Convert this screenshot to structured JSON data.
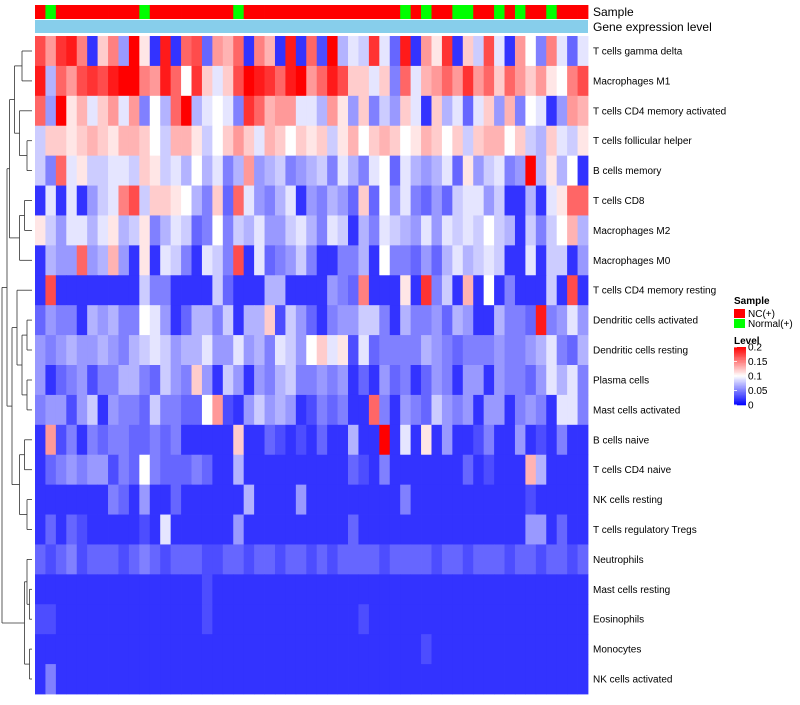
{
  "chart_data": {
    "type": "heatmap",
    "title": "",
    "annotation_labels": [
      "Sample",
      "Gene expression level"
    ],
    "rows": [
      "T cells gamma delta",
      "Macrophages M1",
      "T cells CD4 memory activated",
      "T cells follicular helper",
      "B cells memory",
      "T cells CD8",
      "Macrophages M2",
      "Macrophages M0",
      "T cells CD4 memory resting",
      "Dendritic cells activated",
      "Dendritic cells resting",
      "Plasma cells",
      "Mast cells activated",
      "B cells naive",
      "T cells CD4 naive",
      "NK cells resting",
      "T cells regulatory  Tregs",
      "Neutrophils",
      "Mast cells resting",
      "Eosinophils",
      "Monocytes",
      "NK cells activated"
    ],
    "sample_groups": [
      "NC",
      "Normal",
      "NC",
      "NC",
      "NC",
      "NC",
      "NC",
      "NC",
      "NC",
      "NC",
      "Normal",
      "NC",
      "NC",
      "NC",
      "NC",
      "NC",
      "NC",
      "NC",
      "NC",
      "Normal",
      "NC",
      "NC",
      "NC",
      "NC",
      "NC",
      "NC",
      "NC",
      "NC",
      "NC",
      "NC",
      "NC",
      "NC",
      "NC",
      "NC",
      "NC",
      "Normal",
      "NC",
      "Normal",
      "NC",
      "NC",
      "Normal",
      "Normal",
      "NC",
      "NC",
      "Normal",
      "NC",
      "Normal",
      "NC",
      "NC",
      "Normal",
      "NC",
      "NC",
      "NC"
    ],
    "values": [
      [
        0.17,
        0.14,
        0.18,
        0.19,
        0.15,
        0.02,
        0.12,
        0.15,
        0.06,
        0.2,
        0.11,
        0.02,
        0.19,
        0.02,
        0.16,
        0.17,
        0.04,
        0.14,
        0.13,
        0.16,
        0.02,
        0.15,
        0.13,
        0.02,
        0.19,
        0.02,
        0.16,
        0.03,
        0.2,
        0.07,
        0.09,
        0.08,
        0.18,
        0.09,
        0.04,
        0.19,
        0.02,
        0.14,
        0.11,
        0.18,
        0.02,
        0.12,
        0.08,
        0.17,
        0.09,
        0.02,
        0.14,
        0.1,
        0.05,
        0.15,
        0.09,
        0.04,
        0.09
      ],
      [
        0.19,
        0.07,
        0.16,
        0.14,
        0.17,
        0.18,
        0.17,
        0.19,
        0.2,
        0.2,
        0.15,
        0.14,
        0.19,
        0.16,
        0.1,
        0.18,
        0.12,
        0.09,
        0.12,
        0.17,
        0.2,
        0.19,
        0.18,
        0.16,
        0.19,
        0.2,
        0.14,
        0.16,
        0.19,
        0.17,
        0.12,
        0.12,
        0.09,
        0.12,
        0.05,
        0.16,
        0.09,
        0.13,
        0.14,
        0.16,
        0.14,
        0.18,
        0.14,
        0.16,
        0.12,
        0.16,
        0.14,
        0.12,
        0.14,
        0.11,
        0.1,
        0.15,
        0.17
      ],
      [
        0.16,
        0.06,
        0.2,
        0.11,
        0.13,
        0.09,
        0.12,
        0.14,
        0.09,
        0.14,
        0.05,
        0.1,
        0.07,
        0.16,
        0.2,
        0.07,
        0.09,
        0.1,
        0.09,
        0.05,
        0.18,
        0.16,
        0.13,
        0.14,
        0.14,
        0.09,
        0.09,
        0.07,
        0.14,
        0.11,
        0.06,
        0.12,
        0.05,
        0.08,
        0.06,
        0.12,
        0.09,
        0.02,
        0.12,
        0.07,
        0.09,
        0.04,
        0.09,
        0.12,
        0.06,
        0.13,
        0.05,
        0.1,
        0.09,
        0.02,
        0.06,
        0.14,
        0.13
      ],
      [
        0.08,
        0.12,
        0.12,
        0.11,
        0.12,
        0.13,
        0.12,
        0.11,
        0.13,
        0.13,
        0.12,
        0.1,
        0.08,
        0.13,
        0.13,
        0.11,
        0.08,
        0.1,
        0.12,
        0.14,
        0.12,
        0.09,
        0.13,
        0.12,
        0.1,
        0.12,
        0.11,
        0.12,
        0.08,
        0.11,
        0.13,
        0.1,
        0.12,
        0.13,
        0.12,
        0.1,
        0.11,
        0.13,
        0.12,
        0.1,
        0.12,
        0.08,
        0.12,
        0.13,
        0.13,
        0.1,
        0.12,
        0.08,
        0.07,
        0.12,
        0.09,
        0.08,
        0.11
      ],
      [
        0.08,
        0.05,
        0.16,
        0.09,
        0.11,
        0.08,
        0.08,
        0.09,
        0.09,
        0.08,
        0.12,
        0.11,
        0.08,
        0.09,
        0.07,
        0.1,
        0.07,
        0.09,
        0.05,
        0.07,
        0.14,
        0.06,
        0.07,
        0.08,
        0.05,
        0.06,
        0.07,
        0.08,
        0.05,
        0.09,
        0.07,
        0.05,
        0.09,
        0.1,
        0.04,
        0.09,
        0.07,
        0.06,
        0.07,
        0.09,
        0.04,
        0.11,
        0.06,
        0.08,
        0.09,
        0.05,
        0.06,
        0.2,
        0.07,
        0.11,
        0.07,
        0.1,
        0.02
      ],
      [
        0.02,
        0.09,
        0.02,
        0.09,
        0.02,
        0.06,
        0.08,
        0.09,
        0.15,
        0.17,
        0.08,
        0.12,
        0.12,
        0.11,
        0.1,
        0.07,
        0.05,
        0.12,
        0.04,
        0.16,
        0.09,
        0.06,
        0.05,
        0.07,
        0.09,
        0.02,
        0.06,
        0.05,
        0.07,
        0.06,
        0.04,
        0.12,
        0.04,
        0.1,
        0.06,
        0.09,
        0.05,
        0.04,
        0.06,
        0.04,
        0.08,
        0.09,
        0.09,
        0.06,
        0.08,
        0.02,
        0.02,
        0.07,
        0.02,
        0.09,
        0.11,
        0.16,
        0.16
      ],
      [
        0.11,
        0.08,
        0.06,
        0.09,
        0.09,
        0.07,
        0.09,
        0.11,
        0.07,
        0.08,
        0.11,
        0.05,
        0.07,
        0.09,
        0.08,
        0.04,
        0.05,
        0.1,
        0.05,
        0.08,
        0.07,
        0.09,
        0.06,
        0.06,
        0.08,
        0.09,
        0.07,
        0.05,
        0.09,
        0.08,
        0.02,
        0.07,
        0.05,
        0.09,
        0.08,
        0.07,
        0.06,
        0.09,
        0.06,
        0.09,
        0.08,
        0.09,
        0.08,
        0.1,
        0.08,
        0.07,
        0.02,
        0.08,
        0.05,
        0.08,
        0.1,
        0.13,
        0.07
      ],
      [
        0.02,
        0.07,
        0.06,
        0.06,
        0.16,
        0.06,
        0.07,
        0.13,
        0.06,
        0.02,
        0.11,
        0.02,
        0.09,
        0.08,
        0.05,
        0.02,
        0.09,
        0.08,
        0.05,
        0.17,
        0.02,
        0.09,
        0.04,
        0.05,
        0.06,
        0.08,
        0.05,
        0.02,
        0.02,
        0.05,
        0.05,
        0.07,
        0.02,
        0.1,
        0.05,
        0.05,
        0.04,
        0.06,
        0.04,
        0.07,
        0.09,
        0.07,
        0.08,
        0.09,
        0.08,
        0.02,
        0.02,
        0.09,
        0.02,
        0.08,
        0.08,
        0.02,
        0.06
      ],
      [
        0.02,
        0.17,
        0.02,
        0.02,
        0.02,
        0.02,
        0.02,
        0.02,
        0.02,
        0.02,
        0.08,
        0.05,
        0.05,
        0.02,
        0.02,
        0.02,
        0.02,
        0.08,
        0.04,
        0.02,
        0.02,
        0.02,
        0.07,
        0.07,
        0.02,
        0.02,
        0.02,
        0.02,
        0.06,
        0.05,
        0.04,
        0.15,
        0.02,
        0.02,
        0.02,
        0.11,
        0.02,
        0.18,
        0.05,
        0.08,
        0.02,
        0.13,
        0.02,
        0.1,
        0.02,
        0.05,
        0.02,
        0.02,
        0.02,
        0.08,
        0.02,
        0.17,
        0.02
      ],
      [
        0.04,
        0.06,
        0.05,
        0.05,
        0.02,
        0.07,
        0.06,
        0.07,
        0.05,
        0.05,
        0.1,
        0.09,
        0.06,
        0.02,
        0.04,
        0.07,
        0.07,
        0.05,
        0.08,
        0.02,
        0.07,
        0.07,
        0.12,
        0.03,
        0.08,
        0.06,
        0.04,
        0.02,
        0.05,
        0.06,
        0.06,
        0.08,
        0.08,
        0.05,
        0.02,
        0.07,
        0.05,
        0.05,
        0.06,
        0.04,
        0.07,
        0.06,
        0.02,
        0.02,
        0.07,
        0.05,
        0.05,
        0.04,
        0.19,
        0.05,
        0.06,
        0.09,
        0.06
      ],
      [
        0.06,
        0.05,
        0.06,
        0.07,
        0.06,
        0.06,
        0.07,
        0.06,
        0.05,
        0.07,
        0.08,
        0.09,
        0.08,
        0.06,
        0.07,
        0.07,
        0.09,
        0.06,
        0.06,
        0.09,
        0.06,
        0.07,
        0.05,
        0.09,
        0.08,
        0.06,
        0.1,
        0.12,
        0.09,
        0.11,
        0.03,
        0.09,
        0.04,
        0.05,
        0.05,
        0.05,
        0.05,
        0.07,
        0.06,
        0.05,
        0.04,
        0.05,
        0.05,
        0.05,
        0.06,
        0.05,
        0.05,
        0.06,
        0.07,
        0.09,
        0.05,
        0.04,
        0.07
      ],
      [
        0.06,
        0.02,
        0.04,
        0.05,
        0.06,
        0.03,
        0.05,
        0.05,
        0.07,
        0.07,
        0.05,
        0.04,
        0.08,
        0.06,
        0.05,
        0.12,
        0.06,
        0.02,
        0.08,
        0.06,
        0.02,
        0.06,
        0.05,
        0.07,
        0.08,
        0.05,
        0.05,
        0.06,
        0.05,
        0.06,
        0.02,
        0.04,
        0.02,
        0.06,
        0.04,
        0.05,
        0.02,
        0.04,
        0.06,
        0.05,
        0.02,
        0.06,
        0.06,
        0.02,
        0.06,
        0.05,
        0.05,
        0.04,
        0.06,
        0.09,
        0.07,
        0.09,
        0.05
      ],
      [
        0.05,
        0.06,
        0.06,
        0.03,
        0.06,
        0.08,
        0.02,
        0.06,
        0.05,
        0.05,
        0.04,
        0.08,
        0.05,
        0.05,
        0.04,
        0.04,
        0.1,
        0.14,
        0.03,
        0.02,
        0.06,
        0.08,
        0.06,
        0.07,
        0.06,
        0.02,
        0.03,
        0.05,
        0.04,
        0.05,
        0.02,
        0.02,
        0.16,
        0.05,
        0.02,
        0.06,
        0.05,
        0.04,
        0.08,
        0.06,
        0.05,
        0.06,
        0.02,
        0.06,
        0.06,
        0.02,
        0.05,
        0.06,
        0.05,
        0.02,
        0.09,
        0.09,
        0.05
      ],
      [
        0.02,
        0.14,
        0.03,
        0.05,
        0.02,
        0.05,
        0.04,
        0.05,
        0.05,
        0.04,
        0.04,
        0.05,
        0.04,
        0.05,
        0.02,
        0.02,
        0.02,
        0.02,
        0.02,
        0.12,
        0.02,
        0.02,
        0.04,
        0.03,
        0.02,
        0.03,
        0.02,
        0.04,
        0.02,
        0.02,
        0.07,
        0.02,
        0.02,
        0.2,
        0.02,
        0.09,
        0.02,
        0.11,
        0.02,
        0.06,
        0.02,
        0.02,
        0.03,
        0.05,
        0.02,
        0.02,
        0.06,
        0.02,
        0.03,
        0.02,
        0.05,
        0.02,
        0.02
      ],
      [
        0.02,
        0.04,
        0.05,
        0.06,
        0.05,
        0.06,
        0.06,
        0.03,
        0.05,
        0.04,
        0.1,
        0.05,
        0.04,
        0.04,
        0.04,
        0.05,
        0.04,
        0.02,
        0.02,
        0.07,
        0.02,
        0.02,
        0.02,
        0.02,
        0.02,
        0.02,
        0.02,
        0.02,
        0.02,
        0.02,
        0.04,
        0.03,
        0.02,
        0.05,
        0.02,
        0.02,
        0.02,
        0.02,
        0.02,
        0.02,
        0.02,
        0.04,
        0.02,
        0.03,
        0.02,
        0.02,
        0.02,
        0.13,
        0.07,
        0.02,
        0.02,
        0.02,
        0.02
      ],
      [
        0.02,
        0.02,
        0.02,
        0.02,
        0.02,
        0.02,
        0.02,
        0.05,
        0.04,
        0.02,
        0.06,
        0.02,
        0.02,
        0.04,
        0.02,
        0.02,
        0.02,
        0.02,
        0.02,
        0.02,
        0.07,
        0.02,
        0.02,
        0.02,
        0.02,
        0.06,
        0.02,
        0.02,
        0.02,
        0.02,
        0.02,
        0.02,
        0.02,
        0.02,
        0.02,
        0.05,
        0.02,
        0.02,
        0.02,
        0.02,
        0.02,
        0.02,
        0.02,
        0.02,
        0.02,
        0.02,
        0.02,
        0.03,
        0.02,
        0.02,
        0.02,
        0.02,
        0.02
      ],
      [
        0.02,
        0.04,
        0.02,
        0.04,
        0.03,
        0.02,
        0.02,
        0.02,
        0.02,
        0.02,
        0.03,
        0.02,
        0.09,
        0.02,
        0.02,
        0.02,
        0.02,
        0.02,
        0.02,
        0.06,
        0.02,
        0.02,
        0.02,
        0.02,
        0.02,
        0.02,
        0.02,
        0.02,
        0.02,
        0.02,
        0.04,
        0.02,
        0.02,
        0.02,
        0.02,
        0.02,
        0.02,
        0.02,
        0.02,
        0.02,
        0.02,
        0.02,
        0.02,
        0.02,
        0.02,
        0.02,
        0.02,
        0.06,
        0.06,
        0.02,
        0.04,
        0.02,
        0.02
      ],
      [
        0.04,
        0.03,
        0.04,
        0.05,
        0.03,
        0.04,
        0.04,
        0.04,
        0.03,
        0.04,
        0.05,
        0.04,
        0.03,
        0.04,
        0.04,
        0.04,
        0.03,
        0.03,
        0.04,
        0.04,
        0.03,
        0.04,
        0.04,
        0.03,
        0.04,
        0.04,
        0.03,
        0.04,
        0.03,
        0.04,
        0.04,
        0.04,
        0.04,
        0.03,
        0.04,
        0.04,
        0.04,
        0.04,
        0.03,
        0.04,
        0.04,
        0.03,
        0.04,
        0.04,
        0.04,
        0.03,
        0.04,
        0.04,
        0.03,
        0.04,
        0.04,
        0.03,
        0.04
      ],
      [
        0.02,
        0.02,
        0.02,
        0.02,
        0.02,
        0.02,
        0.02,
        0.02,
        0.02,
        0.02,
        0.02,
        0.02,
        0.02,
        0.02,
        0.02,
        0.02,
        0.03,
        0.02,
        0.02,
        0.02,
        0.02,
        0.02,
        0.02,
        0.02,
        0.02,
        0.02,
        0.02,
        0.02,
        0.02,
        0.02,
        0.02,
        0.02,
        0.02,
        0.02,
        0.02,
        0.02,
        0.02,
        0.02,
        0.02,
        0.02,
        0.02,
        0.02,
        0.02,
        0.02,
        0.02,
        0.02,
        0.02,
        0.02,
        0.02,
        0.02,
        0.02,
        0.02,
        0.02
      ],
      [
        0.03,
        0.03,
        0.02,
        0.02,
        0.02,
        0.02,
        0.02,
        0.02,
        0.02,
        0.02,
        0.02,
        0.02,
        0.02,
        0.02,
        0.02,
        0.02,
        0.03,
        0.02,
        0.02,
        0.02,
        0.02,
        0.02,
        0.02,
        0.02,
        0.02,
        0.02,
        0.02,
        0.02,
        0.02,
        0.02,
        0.02,
        0.03,
        0.02,
        0.02,
        0.02,
        0.02,
        0.02,
        0.02,
        0.02,
        0.02,
        0.02,
        0.02,
        0.02,
        0.02,
        0.02,
        0.02,
        0.02,
        0.02,
        0.02,
        0.02,
        0.02,
        0.02,
        0.02
      ],
      [
        0.02,
        0.02,
        0.02,
        0.02,
        0.02,
        0.02,
        0.02,
        0.02,
        0.02,
        0.02,
        0.02,
        0.02,
        0.02,
        0.02,
        0.02,
        0.02,
        0.02,
        0.02,
        0.02,
        0.02,
        0.02,
        0.02,
        0.02,
        0.02,
        0.02,
        0.02,
        0.02,
        0.02,
        0.02,
        0.02,
        0.02,
        0.02,
        0.02,
        0.02,
        0.02,
        0.02,
        0.02,
        0.03,
        0.02,
        0.02,
        0.02,
        0.02,
        0.02,
        0.02,
        0.02,
        0.02,
        0.02,
        0.02,
        0.02,
        0.02,
        0.02,
        0.02,
        0.02
      ],
      [
        0.02,
        0.05,
        0.02,
        0.02,
        0.02,
        0.02,
        0.02,
        0.02,
        0.02,
        0.02,
        0.02,
        0.02,
        0.02,
        0.02,
        0.02,
        0.02,
        0.02,
        0.02,
        0.02,
        0.02,
        0.02,
        0.02,
        0.02,
        0.02,
        0.02,
        0.02,
        0.02,
        0.02,
        0.02,
        0.02,
        0.02,
        0.02,
        0.02,
        0.02,
        0.02,
        0.02,
        0.02,
        0.02,
        0.02,
        0.02,
        0.02,
        0.02,
        0.02,
        0.02,
        0.02,
        0.02,
        0.02,
        0.02,
        0.02,
        0.02,
        0.02,
        0.02,
        0.02
      ]
    ],
    "color_scale": {
      "min": 0,
      "mid": 0.1,
      "max": 0.2,
      "low_color": "#0000ff",
      "mid_color": "#ffffff",
      "high_color": "#ff0000"
    },
    "legend": {
      "sample_title": "Sample",
      "sample_items": [
        {
          "label": "NC(+)",
          "color": "#ff0000"
        },
        {
          "label": "Normal(+)",
          "color": "#00ff00"
        }
      ],
      "level_title": "Level",
      "level_ticks": [
        {
          "value": 0.2,
          "label": "0.2"
        },
        {
          "value": 0.15,
          "label": "0.15"
        },
        {
          "value": 0.1,
          "label": "0.1"
        },
        {
          "value": 0.05,
          "label": "0.05"
        },
        {
          "value": 0,
          "label": "0"
        }
      ]
    },
    "expression_bar_color": "#87ceeb",
    "dendrogram": "hierarchical clustering of rows (left side)"
  }
}
